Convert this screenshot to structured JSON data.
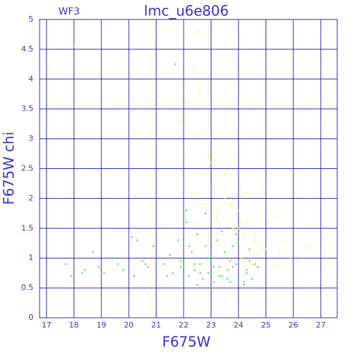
{
  "chart_data": {
    "type": "scatter",
    "title": "lmc_u6e806",
    "annotation": "WF3",
    "x_label": "F675W",
    "y_label": "F675W chi",
    "xlim": [
      16.75,
      27.6
    ],
    "ylim": [
      0,
      5
    ],
    "xticks": [
      17,
      18,
      19,
      20,
      21,
      22,
      23,
      24,
      25,
      26,
      27
    ],
    "yticks": [
      0,
      0.5,
      1,
      1.5,
      2,
      2.5,
      3,
      3.5,
      4,
      4.5,
      5
    ],
    "grid": true,
    "axis_color": "#2a2abb",
    "series": [
      {
        "color": "#22e022",
        "x": [
          17.7,
          17.9,
          18.2,
          18.4,
          18.7,
          18.9,
          19.1,
          19.3,
          19.6,
          19.8,
          20.0,
          20.2,
          20.3,
          20.5,
          20.7,
          20.9,
          21.0,
          21.2,
          21.3,
          21.5,
          21.6,
          21.7,
          21.8,
          21.9,
          22.0,
          22.1,
          22.2,
          22.3,
          22.4,
          22.5,
          22.6,
          22.7,
          22.8,
          22.9,
          23.0,
          23.1,
          23.2,
          23.3,
          23.4,
          23.5,
          23.6,
          23.7,
          23.8,
          23.9,
          24.0,
          24.1,
          24.2,
          24.3,
          24.4,
          24.5,
          21.4,
          21.9,
          22.2,
          22.5,
          22.8,
          23.1,
          23.4,
          23.7,
          24.0,
          24.3,
          22.0,
          22.4,
          22.9,
          23.3,
          23.8,
          24.2,
          24.6,
          21.1,
          20.6,
          19.4,
          18.3,
          21.7,
          22.6,
          23.6,
          24.4,
          22.1,
          23.0,
          23.9,
          24.7,
          20.1
        ],
        "values": [
          0.9,
          0.7,
          1.0,
          0.8,
          1.1,
          0.85,
          0.75,
          1.0,
          0.9,
          0.8,
          1.1,
          0.7,
          1.3,
          0.95,
          0.85,
          1.2,
          0.8,
          1.5,
          0.9,
          1.05,
          0.75,
          4.25,
          1.3,
          0.85,
          0.95,
          1.6,
          0.7,
          1.1,
          0.8,
          1.4,
          0.9,
          0.65,
          1.2,
          0.75,
          1.0,
          0.6,
          1.3,
          0.85,
          0.7,
          1.1,
          0.8,
          0.6,
          1.2,
          0.9,
          0.7,
          1.0,
          0.55,
          0.8,
          1.15,
          0.65,
          0.7,
          0.95,
          1.2,
          0.55,
          1.75,
          0.85,
          1.45,
          0.95,
          1.3,
          0.75,
          0.8,
          0.9,
          1.0,
          0.7,
          0.85,
          0.6,
          0.9,
          1.0,
          0.9,
          1.0,
          0.75,
          1.0,
          0.75,
          0.65,
          0.95,
          1.8,
          0.5,
          1.4,
          0.85,
          1.35
        ]
      },
      {
        "color": "#ffff00",
        "x": [
          22.3,
          22.5,
          22.6,
          22.8,
          22.9,
          23.0,
          23.2,
          23.3,
          23.5,
          23.6,
          23.8,
          23.9,
          24.0,
          24.1,
          24.2,
          24.3,
          24.4,
          24.5,
          24.6,
          24.7,
          24.8,
          24.9,
          25.0,
          25.2,
          25.3,
          25.5,
          25.7,
          25.9,
          26.1,
          26.5,
          22.1,
          22.4,
          22.7,
          23.1,
          23.4,
          23.7,
          24.0,
          24.3,
          24.6,
          25.1,
          22.4,
          22.5,
          22.6,
          22.9,
          21.9,
          20.4,
          18.0,
          23.5,
          25.4,
          24.9
        ],
        "values": [
          2.1,
          1.6,
          2.4,
          1.9,
          1.4,
          2.6,
          1.7,
          1.3,
          2.0,
          1.1,
          1.5,
          1.25,
          1.8,
          1.0,
          1.35,
          1.6,
          1.1,
          0.9,
          1.3,
          1.05,
          1.2,
          0.95,
          1.15,
          1.25,
          0.9,
          1.1,
          1.3,
          1.0,
          1.35,
          1.2,
          3.6,
          4.75,
          3.1,
          2.3,
          2.8,
          1.9,
          1.5,
          2.1,
          1.4,
          1.6,
          4.2,
          4.8,
          3.8,
          2.7,
          3.3,
          3.15,
          4.55,
          2.4,
          1.7,
          2.2
        ]
      }
    ]
  }
}
